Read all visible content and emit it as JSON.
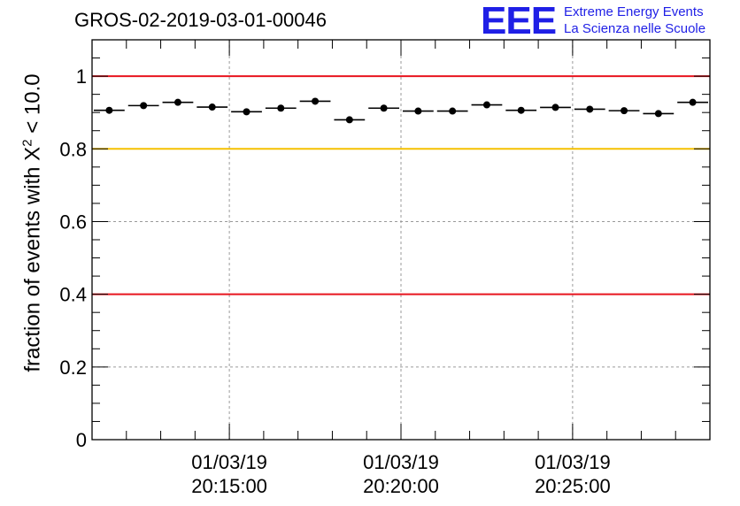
{
  "header": {
    "title": "GROS-02-2019-03-01-00046",
    "logo_letters": "EEE",
    "logo_line1": "Extreme Energy Events",
    "logo_line2": "La Scienza nelle Scuole"
  },
  "chart_data": {
    "type": "scatter",
    "ylabel_prefix": "fraction of events with",
    "ylabel_symbol": "X",
    "ylabel_exponent": "2",
    "ylabel_suffix": "< 10.0",
    "ylim": [
      0,
      1.1
    ],
    "y_ticks": [
      {
        "value": 0,
        "label": "0"
      },
      {
        "value": 0.2,
        "label": "0.2"
      },
      {
        "value": 0.4,
        "label": "0.4"
      },
      {
        "value": 0.6,
        "label": "0.6"
      },
      {
        "value": 0.8,
        "label": "0.8"
      },
      {
        "value": 1,
        "label": "1"
      }
    ],
    "x_range": [
      "01/03/19 20:11:00",
      "01/03/19 20:29:00"
    ],
    "x_ticks": [
      {
        "time": "20:15:00",
        "date": "01/03/19"
      },
      {
        "time": "20:20:00",
        "date": "01/03/19"
      },
      {
        "time": "20:25:00",
        "date": "01/03/19"
      }
    ],
    "bin_width_minutes": 1,
    "grid": true,
    "reference_lines": [
      {
        "value": 1.0,
        "color": "#e8141e"
      },
      {
        "value": 0.8,
        "color": "#f5c000"
      },
      {
        "value": 0.4,
        "color": "#e8141e"
      }
    ],
    "series": [
      {
        "color": "#000000",
        "points": [
          {
            "x": "20:11:30",
            "y": 0.906
          },
          {
            "x": "20:12:30",
            "y": 0.919
          },
          {
            "x": "20:13:30",
            "y": 0.928
          },
          {
            "x": "20:14:30",
            "y": 0.915
          },
          {
            "x": "20:15:30",
            "y": 0.902
          },
          {
            "x": "20:16:30",
            "y": 0.912
          },
          {
            "x": "20:17:30",
            "y": 0.931
          },
          {
            "x": "20:18:30",
            "y": 0.88
          },
          {
            "x": "20:19:30",
            "y": 0.912
          },
          {
            "x": "20:20:30",
            "y": 0.904
          },
          {
            "x": "20:21:30",
            "y": 0.904
          },
          {
            "x": "20:22:30",
            "y": 0.921
          },
          {
            "x": "20:23:30",
            "y": 0.906
          },
          {
            "x": "20:24:30",
            "y": 0.914
          },
          {
            "x": "20:25:30",
            "y": 0.909
          },
          {
            "x": "20:26:30",
            "y": 0.905
          },
          {
            "x": "20:27:30",
            "y": 0.897
          },
          {
            "x": "20:28:30",
            "y": 0.928
          }
        ]
      }
    ]
  }
}
